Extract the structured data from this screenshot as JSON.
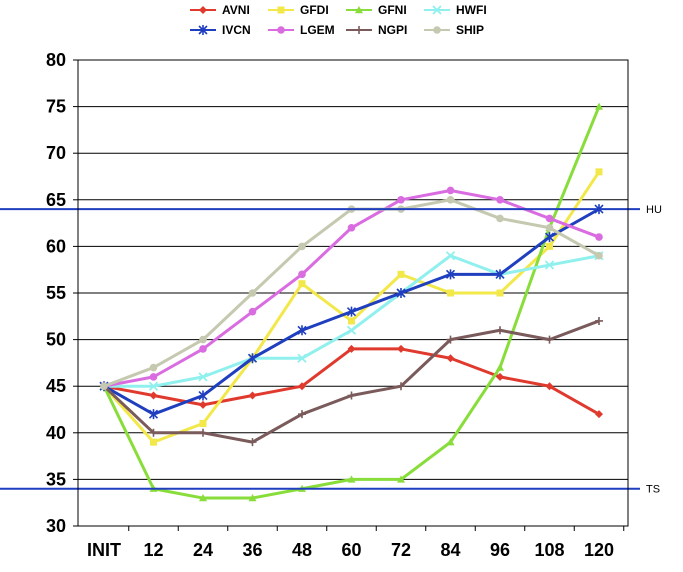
{
  "chart_data": {
    "type": "line",
    "title": "",
    "xlabel": "",
    "ylabel": "",
    "categories": [
      "INIT",
      "12",
      "24",
      "36",
      "48",
      "60",
      "72",
      "84",
      "96",
      "108",
      "120"
    ],
    "ylim": [
      30,
      80
    ],
    "yticks": [
      30,
      35,
      40,
      45,
      50,
      55,
      60,
      65,
      70,
      75,
      80
    ],
    "grid": true,
    "legend_position": "top",
    "series": [
      {
        "name": "AVNI",
        "color": "#e03a2e",
        "marker": "diamond",
        "values": [
          45,
          44,
          43,
          44,
          45,
          49,
          49,
          48,
          46,
          45,
          42
        ]
      },
      {
        "name": "GFDI",
        "color": "#f2e84a",
        "marker": "square",
        "values": [
          45,
          39,
          41,
          48,
          56,
          52,
          57,
          55,
          55,
          60,
          68
        ]
      },
      {
        "name": "GFNI",
        "color": "#88dd3a",
        "marker": "triangle",
        "values": [
          45,
          34,
          33,
          33,
          34,
          35,
          35,
          39,
          47,
          62,
          75
        ]
      },
      {
        "name": "HWFI",
        "color": "#8ff0ee",
        "marker": "x",
        "values": [
          45,
          45,
          46,
          48,
          48,
          51,
          55,
          59,
          57,
          58,
          59
        ]
      },
      {
        "name": "IVCN",
        "color": "#1f3fbf",
        "marker": "star",
        "values": [
          45,
          42,
          44,
          48,
          51,
          53,
          55,
          57,
          57,
          61,
          64
        ]
      },
      {
        "name": "LGEM",
        "color": "#d96ce0",
        "marker": "circle",
        "values": [
          45,
          46,
          49,
          53,
          57,
          62,
          65,
          66,
          65,
          63,
          61
        ]
      },
      {
        "name": "NGPI",
        "color": "#7a5a5a",
        "marker": "plus",
        "values": [
          45,
          40,
          40,
          39,
          42,
          44,
          45,
          50,
          51,
          50,
          52
        ]
      },
      {
        "name": "SHIP",
        "color": "#c4c9b0",
        "marker": "circle",
        "values": [
          45,
          47,
          50,
          55,
          60,
          64,
          64,
          65,
          63,
          62,
          59
        ]
      }
    ],
    "reference_lines": [
      {
        "label": "HU",
        "y": 64,
        "color": "#1f3fbf"
      },
      {
        "label": "TS",
        "y": 34,
        "color": "#1f3fbf"
      }
    ]
  }
}
